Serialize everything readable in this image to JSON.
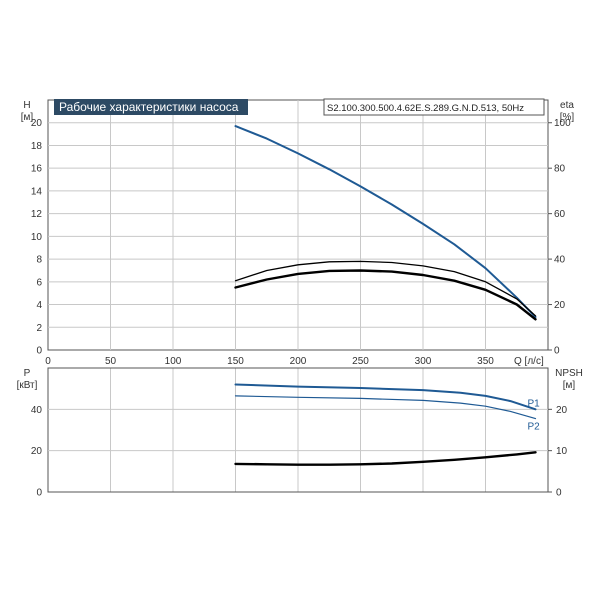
{
  "chart_data": [
    {
      "type": "line",
      "panel": "top",
      "title": "Рабочие характеристики насоса",
      "model": "S2.100.300.500.4.62E.S.289.G.N.D.513, 50Hz",
      "xlabel": "Q [л/с]",
      "ylabel_left": "H",
      "ylabel_left_unit": "[м]",
      "ylabel_right": "eta",
      "ylabel_right_unit": "[%]",
      "xlim": [
        0,
        400
      ],
      "ylim_left": [
        0,
        22
      ],
      "ylim_right": [
        0,
        110
      ],
      "x_ticks": [
        "0",
        "50",
        "100",
        "150",
        "200",
        "250",
        "300",
        "350"
      ],
      "y_left_ticks": [
        "0",
        "2",
        "4",
        "6",
        "8",
        "10",
        "12",
        "14",
        "16",
        "18",
        "20"
      ],
      "y_right_ticks": [
        "0",
        "20",
        "40",
        "60",
        "80",
        "100"
      ],
      "grid": true,
      "series": [
        {
          "color": "#1f5a94",
          "axis": "left",
          "x": [
            150,
            175,
            200,
            225,
            250,
            275,
            300,
            325,
            350,
            375,
            390
          ],
          "y": [
            19.7,
            18.6,
            17.3,
            15.9,
            14.4,
            12.8,
            11.1,
            9.3,
            7.2,
            4.6,
            2.9
          ]
        },
        {
          "color": "#000000",
          "axis": "right",
          "x": [
            150,
            175,
            200,
            225,
            250,
            275,
            300,
            325,
            350,
            375,
            390
          ],
          "y": [
            30.5,
            35,
            37.5,
            38.8,
            39,
            38.5,
            37,
            34.5,
            30,
            22.5,
            15
          ]
        },
        {
          "color": "#000000",
          "axis": "right",
          "x": [
            150,
            175,
            200,
            225,
            250,
            275,
            300,
            325,
            350,
            375,
            390
          ],
          "y": [
            27.5,
            31,
            33.5,
            34.8,
            35,
            34.5,
            33,
            30.5,
            26.5,
            20,
            13.5
          ]
        }
      ]
    },
    {
      "type": "line",
      "panel": "bottom",
      "xlim": [
        0,
        400
      ],
      "ylabel_left": "P",
      "ylabel_left_unit": "[кВт]",
      "ylabel_right": "NPSH",
      "ylabel_right_unit": "[м]",
      "ylim_left": [
        0,
        60
      ],
      "ylim_right": [
        0,
        30
      ],
      "y_left_ticks": [
        "0",
        "20",
        "40"
      ],
      "y_right_ticks": [
        "0",
        "10",
        "20"
      ],
      "grid": true,
      "series": [
        {
          "name": "P1",
          "color": "#1f5a94",
          "axis": "left",
          "x": [
            150,
            200,
            250,
            300,
            330,
            350,
            370,
            390
          ],
          "y": [
            52,
            51,
            50.3,
            49.3,
            48,
            46.5,
            44,
            40
          ]
        },
        {
          "name": "P2",
          "color": "#1f5a94",
          "axis": "left",
          "x": [
            150,
            200,
            250,
            300,
            330,
            350,
            370,
            390
          ],
          "y": [
            46.5,
            45.8,
            45.3,
            44.3,
            43,
            41.5,
            39,
            35.5
          ]
        },
        {
          "color": "#000000",
          "axis": "right",
          "x": [
            150,
            175,
            200,
            225,
            250,
            275,
            300,
            325,
            350,
            375,
            390
          ],
          "y": [
            6.8,
            6.7,
            6.6,
            6.6,
            6.7,
            6.9,
            7.3,
            7.8,
            8.4,
            9.1,
            9.6
          ]
        }
      ]
    }
  ]
}
